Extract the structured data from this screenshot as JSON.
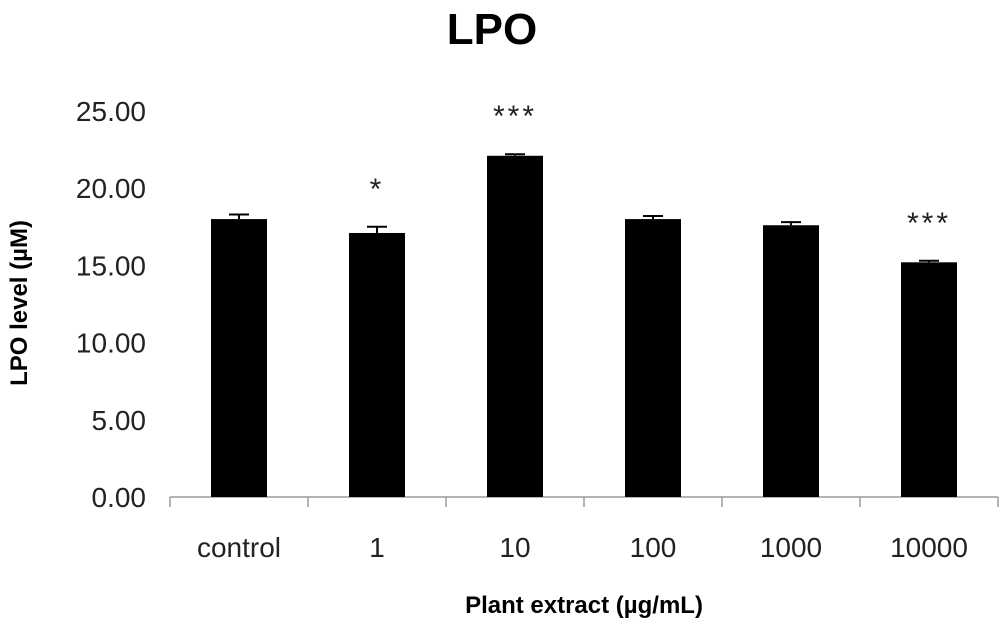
{
  "chart_data": {
    "type": "bar",
    "title": "LPO",
    "xlabel": "Plant extract (µg/mL)",
    "ylabel": "LPO level (µM)",
    "categories": [
      "control",
      "1",
      "10",
      "100",
      "1000",
      "10000"
    ],
    "values": [
      18.0,
      17.1,
      22.1,
      18.0,
      17.6,
      15.2
    ],
    "errors": [
      0.3,
      0.4,
      0.1,
      0.2,
      0.2,
      0.1
    ],
    "significance": [
      "",
      "*",
      "***",
      "",
      "",
      "***"
    ],
    "yticks": [
      "0.00",
      "5.00",
      "10.00",
      "15.00",
      "20.00",
      "25.00"
    ],
    "ylim": [
      0,
      25
    ],
    "grid": false,
    "legend": "none",
    "bar_color": "#000000"
  }
}
